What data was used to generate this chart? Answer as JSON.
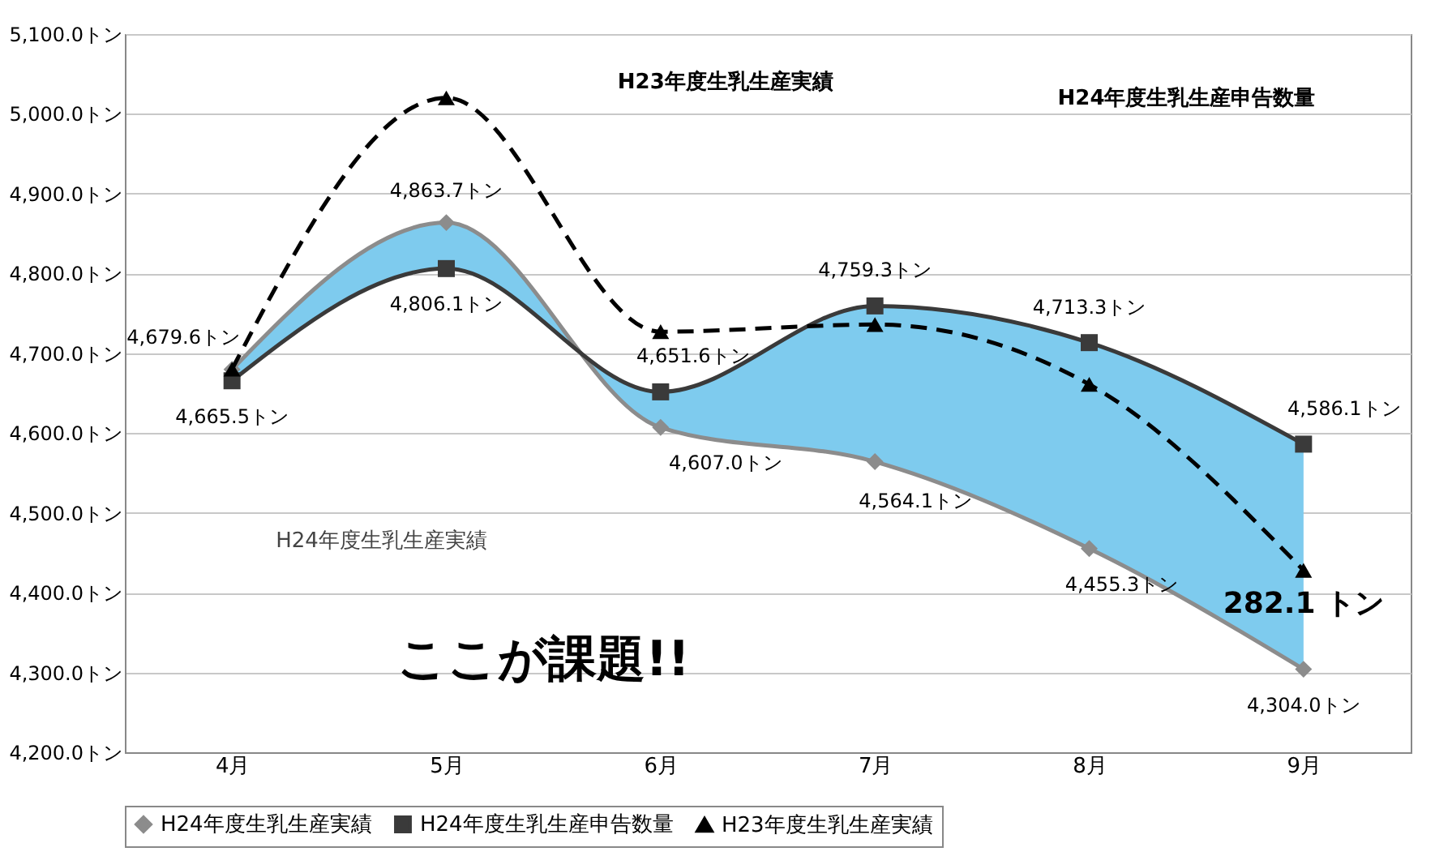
{
  "chart_data": {
    "type": "line",
    "categories": [
      "4月",
      "5月",
      "6月",
      "7月",
      "8月",
      "9月"
    ],
    "series": [
      {
        "name": "H24年度生乳生産実績",
        "color": "#8c8c8c",
        "marker": "diamond",
        "line_style": "solid",
        "values": [
          4679.6,
          4863.7,
          4607.0,
          4564.1,
          4455.3,
          4304.0
        ],
        "value_labels": [
          "4,679.6トン",
          "4,863.7トン",
          "4,607.0トン",
          "4,564.1トン",
          "4,455.3トン",
          "4,304.0トン"
        ]
      },
      {
        "name": "H24年度生乳生産申告数量",
        "color": "#3a3a3a",
        "marker": "square",
        "line_style": "solid",
        "values": [
          4665.5,
          4806.1,
          4651.6,
          4759.3,
          4713.3,
          4586.1
        ],
        "lower": [
          4679.6,
          4863.7,
          4607.0,
          4564.1,
          4455.3,
          4304.0
        ],
        "upper": [
          4665.5,
          4806.1,
          4651.6,
          4759.3,
          4713.3,
          4586.1
        ],
        "value_labels": [
          "4,665.5トン",
          "4,806.1トン",
          "4,651.6トン",
          "4,759.3トン",
          "4,713.3トン",
          "4,586.1トン"
        ]
      },
      {
        "name": "H23年度生乳生産実績",
        "color": "#000000",
        "marker": "triangle",
        "line_style": "dashed",
        "values": [
          4680,
          5020,
          4727,
          4736,
          4661,
          4428
        ]
      }
    ],
    "ylim": [
      4200,
      5100
    ],
    "yticks": [
      {
        "value": 4200,
        "label": "4,200.0トン"
      },
      {
        "value": 4300,
        "label": "4,300.0トン"
      },
      {
        "value": 4400,
        "label": "4,400.0トン"
      },
      {
        "value": 4500,
        "label": "4,500.0トン"
      },
      {
        "value": 4600,
        "label": "4,600.0トン"
      },
      {
        "value": 4700,
        "label": "4,700.0トン"
      },
      {
        "value": 4800,
        "label": "4,800.0トン"
      },
      {
        "value": 4900,
        "label": "4,900.0トン"
      },
      {
        "value": 5000,
        "label": "5,000.0トン"
      },
      {
        "value": 5100,
        "label": "5,100.0トン"
      }
    ],
    "grid": "y",
    "legend": "bottom",
    "annotations": [
      "H23年度生乳生産実績",
      "H24年度生乳生産申告数量",
      "H24年度生乳生産実績",
      "ここが課題!!",
      "282.1 トン"
    ]
  }
}
